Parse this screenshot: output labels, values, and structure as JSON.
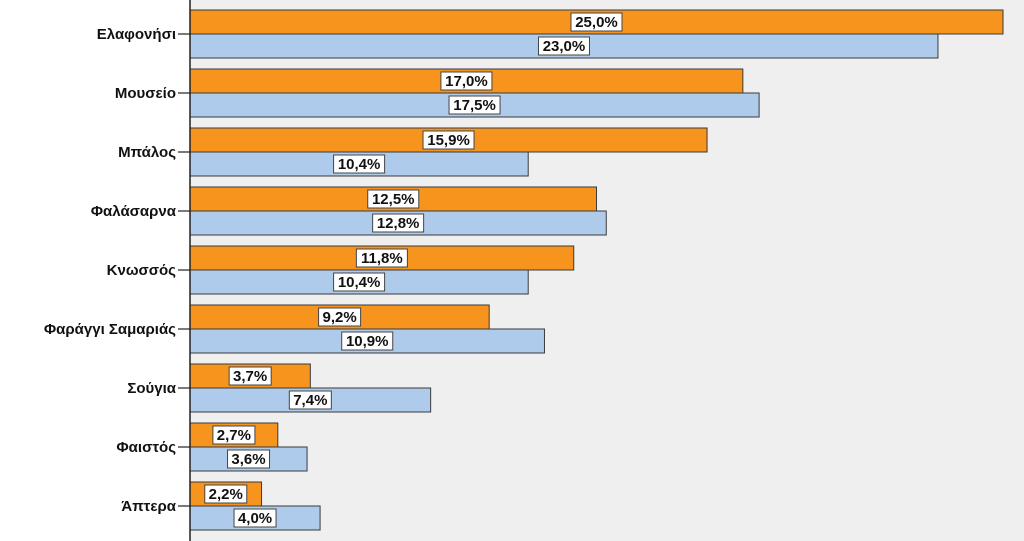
{
  "chart_data": {
    "type": "bar",
    "orientation": "horizontal",
    "categories": [
      "Ελαφονήσι",
      "Μουσείο",
      "Μπάλος",
      "Φαλάσαρνα",
      "Κνωσσός",
      "Φαράγγι Σαμαριάς",
      "Σούγια",
      "Φαιστός",
      "Άπτερα"
    ],
    "series": [
      {
        "values": [
          25.0,
          17.0,
          15.9,
          12.5,
          11.8,
          9.2,
          3.7,
          2.7,
          2.2
        ],
        "labels": [
          "25,0%",
          "17,0%",
          "15,9%",
          "12,5%",
          "11,8%",
          "9,2%",
          "3,7%",
          "2,7%",
          "2,2%"
        ],
        "color": "#f7941d"
      },
      {
        "values": [
          23.0,
          17.5,
          10.4,
          12.8,
          10.4,
          10.9,
          7.4,
          3.6,
          4.0
        ],
        "labels": [
          "23,0%",
          "17,5%",
          "10,4%",
          "12,8%",
          "10,4%",
          "10,9%",
          "7,4%",
          "3,6%",
          "4,0%"
        ],
        "color": "#aecbeb"
      }
    ],
    "xlim": [
      0,
      25
    ],
    "plot_background": "#efefef",
    "legend": "none",
    "grid": false
  }
}
